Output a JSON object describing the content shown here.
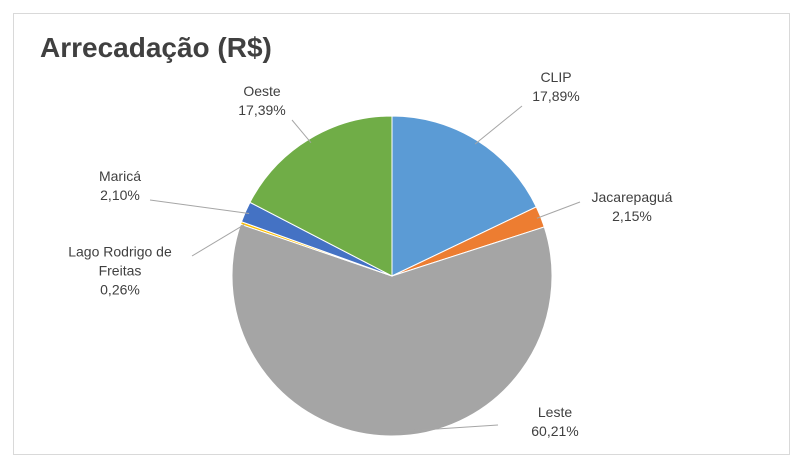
{
  "chart_data": {
    "type": "pie",
    "title": "Arrecadação (R$)",
    "categories": [
      "CLIP",
      "Jacarepaguá",
      "Leste",
      "Lago Rodrigo de Freitas",
      "Maricá",
      "Oeste"
    ],
    "values": [
      17.89,
      2.15,
      60.21,
      0.26,
      2.1,
      17.39
    ],
    "value_labels": [
      "17,89%",
      "2,15%",
      "60,21%",
      "0,26%",
      "2,10%",
      "17,39%"
    ],
    "colors": [
      "#5b9bd5",
      "#ed7d31",
      "#a5a5a5",
      "#ffc000",
      "#4472c4",
      "#70ad47"
    ]
  }
}
